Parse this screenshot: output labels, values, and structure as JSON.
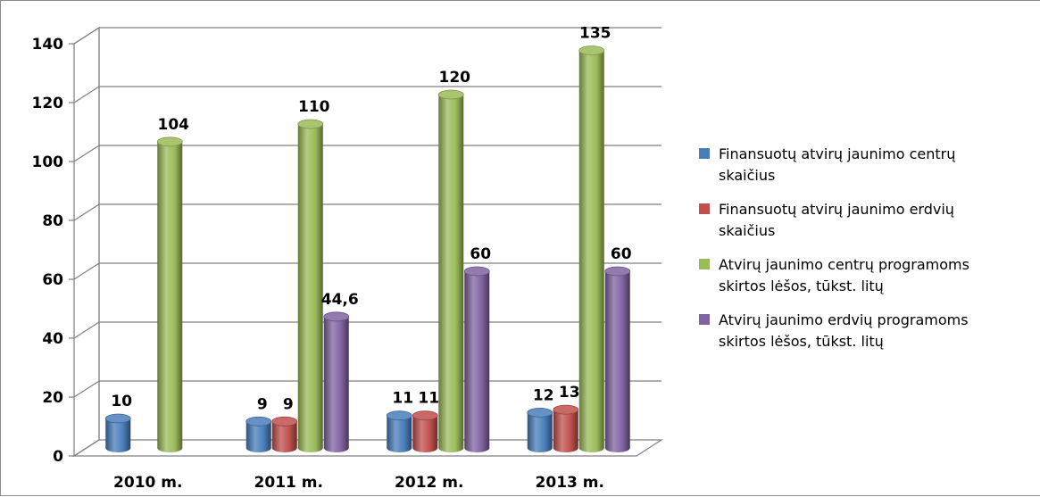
{
  "chart_data": {
    "type": "bar",
    "categories": [
      "2010 m.",
      "2011 m.",
      "2012 m.",
      "2013 m."
    ],
    "series": [
      {
        "name": "Finansuotų atvirų jaunimo centrų\nskaičius",
        "values": [
          10,
          9,
          11,
          12
        ],
        "labels": [
          "10",
          "9",
          "11",
          "12"
        ],
        "color": "#4a7ebb"
      },
      {
        "name": "Finansuotų atvirų jaunimo erdvių\nskaičius",
        "values": [
          null,
          9,
          11,
          13
        ],
        "labels": [
          "",
          "9",
          "11",
          "13"
        ],
        "color": "#c0504d"
      },
      {
        "name": "Atvirų jaunimo centrų programoms\nskirtos lėšos, tūkst. litų",
        "values": [
          104,
          110,
          120,
          135
        ],
        "labels": [
          "104",
          "110",
          "120",
          "135"
        ],
        "color": "#9bbb59"
      },
      {
        "name": "Atvirų jaunimo erdvių programoms\nskirtos lėšos, tūkst. litų",
        "values": [
          null,
          44.6,
          60,
          60
        ],
        "labels": [
          "",
          "44,6",
          "60",
          "60"
        ],
        "color": "#8064a2"
      }
    ],
    "yticks": [
      0,
      20,
      40,
      60,
      80,
      100,
      120,
      140
    ],
    "ylim": [
      0,
      140
    ],
    "grid": true,
    "legend": "right",
    "style": "3d-cylinder"
  }
}
